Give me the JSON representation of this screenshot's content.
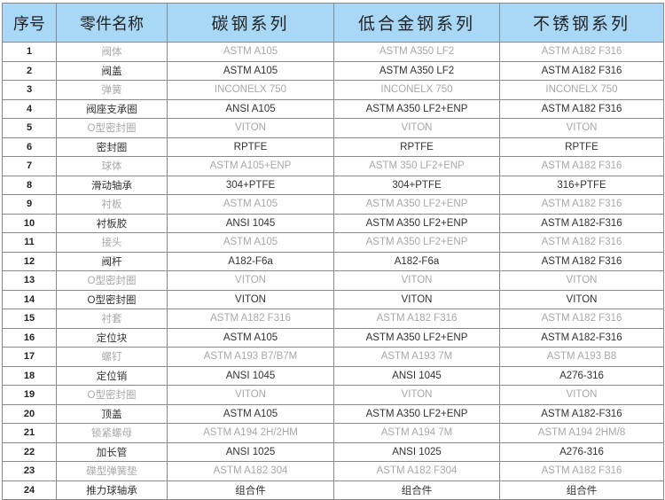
{
  "table": {
    "headers": [
      "序号",
      "零件名称",
      "碳钢系列",
      "低合金钢系列",
      "不锈钢系列"
    ],
    "rows": [
      [
        "1",
        "阀体",
        "ASTM A105",
        "ASTM A350 LF2",
        "ASTM A182 F316"
      ],
      [
        "2",
        "阀盖",
        "ASTM A105",
        "ASTM A350 LF2",
        "ASTM A182 F316"
      ],
      [
        "3",
        "弹簧",
        "INCONELX 750",
        "INCONELX 750",
        "INCONELX 750"
      ],
      [
        "4",
        "阀座支承圈",
        "ANSI A105",
        "ASTM A350 LF2+ENP",
        "ASTM A182 F316"
      ],
      [
        "5",
        "O型密封圈",
        "VITON",
        "VITON",
        "VITON"
      ],
      [
        "6",
        "密封圈",
        "RPTFE",
        "RPTFE",
        "RPTFE"
      ],
      [
        "7",
        "球体",
        "ASTM A105+ENP",
        "ASTM 350 LF2+ENP",
        "ASTM A182 F316"
      ],
      [
        "8",
        "滑动轴承",
        "304+PTFE",
        "304+PTFE",
        "316+PTFE"
      ],
      [
        "9",
        "衬板",
        "ASTM A105",
        "ASTM A350 LF2+ENP",
        "ASTM A182 F316"
      ],
      [
        "10",
        "衬板胶",
        "ANSI 1045",
        "ASTM A350 LF2+ENP",
        "ASTM A182-F316"
      ],
      [
        "11",
        "接头",
        "ASTM A105",
        "ASTM A350 LF2+ENP",
        "ASTM A182 F316"
      ],
      [
        "12",
        "阀杆",
        "A182-F6a",
        "A182-F6a",
        "ASTM A182 F316"
      ],
      [
        "13",
        "O型密封圈",
        "VITON",
        "VITON",
        "VITON"
      ],
      [
        "14",
        "O型密封圈",
        "VITON",
        "VITON",
        "VITON"
      ],
      [
        "15",
        "衬套",
        "ASTM A182 F316",
        "ASTM A182 F316",
        "ASTM A182 F316"
      ],
      [
        "16",
        "定位块",
        "ASTM A105",
        "ASTM A350 LF2+ENP",
        "ASTM A182-F316"
      ],
      [
        "17",
        "螺钉",
        "ASTM A193 B7/B7M",
        "ASTM A193 7M",
        "ASTM A193 B8"
      ],
      [
        "18",
        "定位销",
        "ANSI 1045",
        "ANSI 1045",
        "A276-316"
      ],
      [
        "19",
        "O型密封圈",
        "VITON",
        "VITON",
        "VITON"
      ],
      [
        "20",
        "顶盖",
        "ASTM A105",
        "ASTM A350 LF2+ENP",
        "ASTM A182-F316"
      ],
      [
        "21",
        "锁紧螺母",
        "ASTM A194 2H/2HM",
        "ASTM A194 7M",
        "ASTM A194 2HM/8"
      ],
      [
        "22",
        "加长管",
        "ANSI 1025",
        "ANSI 1025",
        "A276-316"
      ],
      [
        "23",
        "碟型弹簧垫",
        "ASTM A182 304",
        "ASTM A182 F304",
        "ASTM A182 F316"
      ],
      [
        "24",
        "推力球轴承",
        "组合件",
        "组合件",
        "组合件"
      ]
    ]
  },
  "colors": {
    "header_bg": "#a8d8f6",
    "border": "#8a8a8a",
    "faint_text": "#a8a8a8",
    "dark_text": "#333333"
  }
}
